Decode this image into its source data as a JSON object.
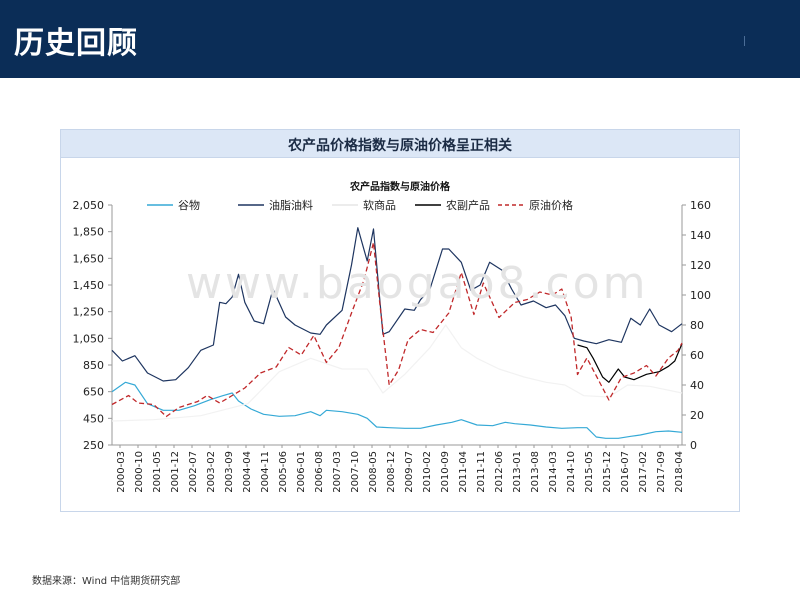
{
  "header": {
    "title": "历史回顾"
  },
  "panel": {
    "title": "农产品价格指数与原油价格呈正相关"
  },
  "watermark": "www.baogao8.com",
  "source_note": "数据来源：Wind  中信期货研究部",
  "colors": {
    "header_bg": "#0b2d57",
    "titlebar_bg": "#dce7f6"
  },
  "chart_data": {
    "type": "line",
    "title": "农产品指数与原油价格",
    "xlabel": "",
    "ylabel": "",
    "y_left": {
      "ticks": [
        "250",
        "450",
        "650",
        "850",
        "1,050",
        "1,250",
        "1,450",
        "1,650",
        "1,850",
        "2,050"
      ],
      "ylim": [
        250,
        2050
      ]
    },
    "y_right": {
      "ticks": [
        "0",
        "20",
        "40",
        "60",
        "80",
        "100",
        "120",
        "140",
        "160"
      ],
      "ylim": [
        0,
        160
      ]
    },
    "x_ticks": [
      "2000-03",
      "2000-10",
      "2001-05",
      "2001-12",
      "2002-07",
      "2003-02",
      "2003-09",
      "2004-04",
      "2004-11",
      "2005-06",
      "2006-01",
      "2006-08",
      "2007-03",
      "2007-10",
      "2008-05",
      "2008-12",
      "2009-07",
      "2010-02",
      "2010-09",
      "2011-04",
      "2011-11",
      "2012-06",
      "2013-01",
      "2013-08",
      "2014-03",
      "2014-10",
      "2015-05",
      "2015-12",
      "2016-07",
      "2017-02",
      "2017-09",
      "2018-04"
    ],
    "x_range": [
      2000.17,
      2018.33
    ],
    "grid": false,
    "legend_position": "top",
    "series": [
      {
        "name": "谷物",
        "axis": "left",
        "color": "#35a9d6",
        "dash": "",
        "points": [
          [
            2000.17,
            650
          ],
          [
            2000.6,
            720
          ],
          [
            2000.9,
            700
          ],
          [
            2001.3,
            560
          ],
          [
            2001.8,
            510
          ],
          [
            2002.3,
            510
          ],
          [
            2002.8,
            545
          ],
          [
            2003.3,
            590
          ],
          [
            2003.7,
            620
          ],
          [
            2004.0,
            640
          ],
          [
            2004.2,
            580
          ],
          [
            2004.6,
            520
          ],
          [
            2005.0,
            480
          ],
          [
            2005.5,
            465
          ],
          [
            2006.0,
            470
          ],
          [
            2006.5,
            500
          ],
          [
            2006.8,
            470
          ],
          [
            2007.0,
            510
          ],
          [
            2007.5,
            500
          ],
          [
            2008.0,
            480
          ],
          [
            2008.3,
            450
          ],
          [
            2008.6,
            385
          ],
          [
            2009.0,
            380
          ],
          [
            2009.5,
            375
          ],
          [
            2010.0,
            375
          ],
          [
            2010.5,
            400
          ],
          [
            2011.0,
            420
          ],
          [
            2011.3,
            440
          ],
          [
            2011.8,
            400
          ],
          [
            2012.3,
            395
          ],
          [
            2012.7,
            420
          ],
          [
            2013.0,
            410
          ],
          [
            2013.5,
            400
          ],
          [
            2014.0,
            385
          ],
          [
            2014.5,
            375
          ],
          [
            2015.0,
            380
          ],
          [
            2015.3,
            380
          ],
          [
            2015.6,
            310
          ],
          [
            2015.9,
            300
          ],
          [
            2016.3,
            300
          ],
          [
            2016.7,
            315
          ],
          [
            2017.0,
            325
          ],
          [
            2017.5,
            350
          ],
          [
            2017.9,
            355
          ],
          [
            2018.33,
            345
          ]
        ]
      },
      {
        "name": "油脂油料",
        "axis": "left",
        "color": "#1e3560",
        "dash": "",
        "points": [
          [
            2000.17,
            960
          ],
          [
            2000.5,
            880
          ],
          [
            2000.9,
            920
          ],
          [
            2001.3,
            790
          ],
          [
            2001.8,
            730
          ],
          [
            2002.2,
            740
          ],
          [
            2002.6,
            830
          ],
          [
            2003.0,
            960
          ],
          [
            2003.4,
            1000
          ],
          [
            2003.6,
            1320
          ],
          [
            2003.8,
            1310
          ],
          [
            2004.0,
            1360
          ],
          [
            2004.2,
            1530
          ],
          [
            2004.4,
            1320
          ],
          [
            2004.7,
            1180
          ],
          [
            2005.0,
            1160
          ],
          [
            2005.3,
            1420
          ],
          [
            2005.7,
            1210
          ],
          [
            2006.0,
            1150
          ],
          [
            2006.5,
            1090
          ],
          [
            2006.8,
            1080
          ],
          [
            2007.0,
            1150
          ],
          [
            2007.5,
            1260
          ],
          [
            2007.8,
            1600
          ],
          [
            2008.0,
            1880
          ],
          [
            2008.3,
            1630
          ],
          [
            2008.5,
            1870
          ],
          [
            2008.8,
            1080
          ],
          [
            2009.0,
            1100
          ],
          [
            2009.5,
            1270
          ],
          [
            2009.8,
            1260
          ],
          [
            2010.0,
            1340
          ],
          [
            2010.3,
            1420
          ],
          [
            2010.7,
            1720
          ],
          [
            2010.9,
            1720
          ],
          [
            2011.3,
            1620
          ],
          [
            2011.6,
            1410
          ],
          [
            2011.9,
            1450
          ],
          [
            2012.2,
            1620
          ],
          [
            2012.6,
            1560
          ],
          [
            2012.9,
            1420
          ],
          [
            2013.2,
            1300
          ],
          [
            2013.6,
            1330
          ],
          [
            2014.0,
            1280
          ],
          [
            2014.3,
            1300
          ],
          [
            2014.6,
            1220
          ],
          [
            2014.9,
            1050
          ],
          [
            2015.2,
            1030
          ],
          [
            2015.6,
            1010
          ],
          [
            2016.0,
            1040
          ],
          [
            2016.4,
            1020
          ],
          [
            2016.7,
            1200
          ],
          [
            2017.0,
            1150
          ],
          [
            2017.3,
            1270
          ],
          [
            2017.6,
            1150
          ],
          [
            2018.0,
            1100
          ],
          [
            2018.33,
            1160
          ]
        ]
      },
      {
        "name": "软商品",
        "axis": "left",
        "color": "#f2f2f2",
        "dash": "",
        "points": [
          [
            2000.17,
            430
          ],
          [
            2001.5,
            440
          ],
          [
            2003.0,
            470
          ],
          [
            2004.5,
            560
          ],
          [
            2005.5,
            800
          ],
          [
            2006.5,
            900
          ],
          [
            2007.5,
            820
          ],
          [
            2008.3,
            820
          ],
          [
            2008.8,
            640
          ],
          [
            2009.5,
            780
          ],
          [
            2010.3,
            980
          ],
          [
            2010.8,
            1150
          ],
          [
            2011.3,
            980
          ],
          [
            2011.8,
            900
          ],
          [
            2012.5,
            820
          ],
          [
            2013.3,
            760
          ],
          [
            2014.0,
            720
          ],
          [
            2014.6,
            700
          ],
          [
            2015.2,
            620
          ],
          [
            2016.0,
            610
          ],
          [
            2016.6,
            700
          ],
          [
            2017.3,
            690
          ],
          [
            2018.33,
            640
          ]
        ]
      },
      {
        "name": "农副产品",
        "axis": "left",
        "color": "#000000",
        "dash": "",
        "points": [
          [
            2015.0,
            1000
          ],
          [
            2015.3,
            980
          ],
          [
            2015.5,
            900
          ],
          [
            2015.8,
            760
          ],
          [
            2016.0,
            720
          ],
          [
            2016.3,
            820
          ],
          [
            2016.5,
            760
          ],
          [
            2016.8,
            740
          ],
          [
            2017.2,
            780
          ],
          [
            2017.6,
            800
          ],
          [
            2017.9,
            840
          ],
          [
            2018.1,
            880
          ],
          [
            2018.33,
            1010
          ]
        ]
      },
      {
        "name": "原油价格",
        "axis": "right",
        "color": "#c0282a",
        "dash": "5,3",
        "points": [
          [
            2000.17,
            27
          ],
          [
            2000.7,
            33
          ],
          [
            2001.0,
            28
          ],
          [
            2001.5,
            27
          ],
          [
            2001.9,
            19
          ],
          [
            2002.3,
            25
          ],
          [
            2002.9,
            29
          ],
          [
            2003.2,
            33
          ],
          [
            2003.6,
            28
          ],
          [
            2004.0,
            33
          ],
          [
            2004.4,
            38
          ],
          [
            2004.9,
            48
          ],
          [
            2005.4,
            52
          ],
          [
            2005.8,
            65
          ],
          [
            2006.2,
            60
          ],
          [
            2006.6,
            73
          ],
          [
            2007.0,
            55
          ],
          [
            2007.4,
            65
          ],
          [
            2007.8,
            88
          ],
          [
            2008.2,
            110
          ],
          [
            2008.5,
            135
          ],
          [
            2008.7,
            95
          ],
          [
            2009.0,
            40
          ],
          [
            2009.3,
            50
          ],
          [
            2009.6,
            70
          ],
          [
            2010.0,
            77
          ],
          [
            2010.4,
            75
          ],
          [
            2010.9,
            88
          ],
          [
            2011.3,
            115
          ],
          [
            2011.7,
            87
          ],
          [
            2012.0,
            108
          ],
          [
            2012.5,
            85
          ],
          [
            2013.0,
            95
          ],
          [
            2013.4,
            97
          ],
          [
            2013.8,
            102
          ],
          [
            2014.2,
            100
          ],
          [
            2014.5,
            104
          ],
          [
            2014.8,
            85
          ],
          [
            2015.0,
            47
          ],
          [
            2015.3,
            58
          ],
          [
            2015.7,
            42
          ],
          [
            2016.0,
            30
          ],
          [
            2016.4,
            45
          ],
          [
            2016.8,
            48
          ],
          [
            2017.2,
            53
          ],
          [
            2017.5,
            46
          ],
          [
            2017.9,
            58
          ],
          [
            2018.2,
            63
          ],
          [
            2018.33,
            68
          ]
        ]
      }
    ]
  }
}
